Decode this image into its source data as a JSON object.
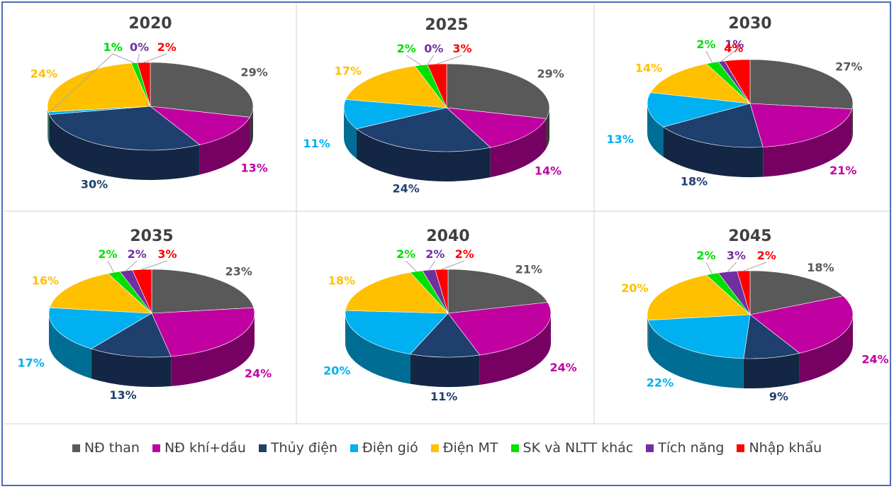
{
  "colors": {
    "nd_than": "#595959",
    "nd_khi_dau": "#c000a0",
    "thuy_dien": "#1f3f6e",
    "dien_gio": "#00b0f0",
    "dien_mt": "#ffc000",
    "sk_nltt": "#00e000",
    "tich_nang": "#7030a0",
    "nhap_khau": "#ff0000"
  },
  "legend": [
    {
      "key": "nd_than",
      "label": "NĐ than"
    },
    {
      "key": "nd_khi_dau",
      "label": "NĐ khí+dầu"
    },
    {
      "key": "thuy_dien",
      "label": "Thủy điện"
    },
    {
      "key": "dien_gio",
      "label": "Điện gió"
    },
    {
      "key": "dien_mt",
      "label": "Điện MT"
    },
    {
      "key": "sk_nltt",
      "label": "SK và NLTT khác"
    },
    {
      "key": "tich_nang",
      "label": "Tích năng"
    },
    {
      "key": "nhap_khau",
      "label": "Nhập khẩu"
    }
  ],
  "chart_data": [
    {
      "type": "pie",
      "title": "2020",
      "categories": [
        "NĐ than",
        "NĐ khí+dầu",
        "Thủy điện",
        "Điện gió",
        "Điện MT",
        "SK và NLTT khác",
        "Tích năng",
        "Nhập khẩu"
      ],
      "values": [
        29,
        13,
        30,
        1,
        24,
        1,
        0,
        2
      ],
      "labels": [
        "29%",
        "13%",
        "30%",
        "1%",
        "24%",
        "1%",
        "0%",
        "2%"
      ]
    },
    {
      "type": "pie",
      "title": "2025",
      "categories": [
        "NĐ than",
        "NĐ khí+dầu",
        "Thủy điện",
        "Điện gió",
        "Điện MT",
        "SK và NLTT khác",
        "Tích năng",
        "Nhập khẩu"
      ],
      "values": [
        29,
        14,
        24,
        11,
        17,
        2,
        0,
        3
      ],
      "labels": [
        "29%",
        "14%",
        "24%",
        "11%",
        "17%",
        "2%",
        "0%",
        "3%"
      ]
    },
    {
      "type": "pie",
      "title": "2030",
      "categories": [
        "NĐ than",
        "NĐ khí+dầu",
        "Thủy điện",
        "Điện gió",
        "Điện MT",
        "SK và NLTT khác",
        "Tích năng",
        "Nhập khẩu"
      ],
      "values": [
        27,
        21,
        18,
        13,
        14,
        2,
        1,
        4
      ],
      "labels": [
        "27%",
        "21%",
        "18%",
        "13%",
        "14%",
        "2%",
        "1%",
        "4%"
      ]
    },
    {
      "type": "pie",
      "title": "2035",
      "categories": [
        "NĐ than",
        "NĐ khí+dầu",
        "Thủy điện",
        "Điện gió",
        "Điện MT",
        "SK và NLTT khác",
        "Tích năng",
        "Nhập khẩu"
      ],
      "values": [
        23,
        24,
        13,
        17,
        16,
        2,
        2,
        3
      ],
      "labels": [
        "23%",
        "24%",
        "13%",
        "17%",
        "16%",
        "2%",
        "2%",
        "3%"
      ]
    },
    {
      "type": "pie",
      "title": "2040",
      "categories": [
        "NĐ than",
        "NĐ khí+dầu",
        "Thủy điện",
        "Điện gió",
        "Điện MT",
        "SK và NLTT khác",
        "Tích năng",
        "Nhập khẩu"
      ],
      "values": [
        21,
        24,
        11,
        20,
        18,
        2,
        2,
        2
      ],
      "labels": [
        "21%",
        "24%",
        "11%",
        "20%",
        "18%",
        "2%",
        "2%",
        "2%"
      ]
    },
    {
      "type": "pie",
      "title": "2045",
      "categories": [
        "NĐ than",
        "NĐ khí+dầu",
        "Thủy điện",
        "Điện gió",
        "Điện MT",
        "SK và NLTT khác",
        "Tích năng",
        "Nhập khẩu"
      ],
      "values": [
        18,
        24,
        9,
        22,
        20,
        2,
        3,
        2
      ],
      "labels": [
        "18%",
        "24%",
        "9%",
        "22%",
        "20%",
        "2%",
        "3%",
        "2%"
      ]
    }
  ]
}
